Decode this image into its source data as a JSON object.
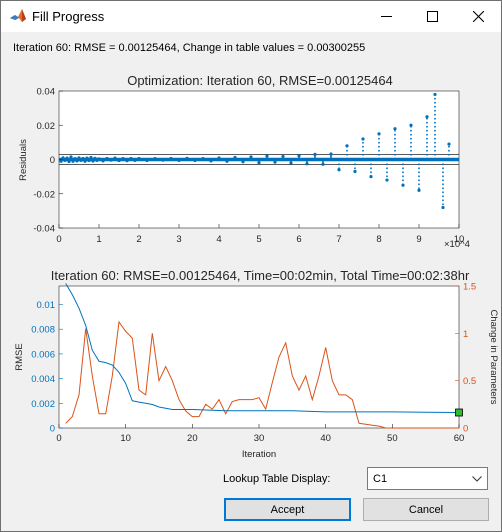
{
  "window": {
    "title": "Fill Progress",
    "icons": [
      "matlab-logo-icon",
      "minimize-icon",
      "maximize-icon",
      "close-icon"
    ]
  },
  "status": "Iteration 60: RMSE = 0.00125464, Change in table values = 0.00300255",
  "controls": {
    "lookup_label": "Lookup Table Display:",
    "lookup_value": "C1",
    "accept_label": "Accept",
    "cancel_label": "Cancel"
  },
  "colors": {
    "blue": "#0072bd",
    "orange": "#d95319",
    "marker": "#2ebd2e",
    "accept_border": "#0078d7"
  },
  "chart_data": [
    {
      "type": "scatter",
      "title": "Optimization: Iteration 60, RMSE=0.00125464",
      "ylabel": "Residuals",
      "xlabel": "",
      "x_exponent_label": "×10^4",
      "xlim": [
        0,
        10
      ],
      "ylim": [
        -0.04,
        0.04
      ],
      "x_ticks": [
        "0",
        "1",
        "2",
        "3",
        "4",
        "5",
        "6",
        "7",
        "8",
        "9",
        "10"
      ],
      "y_ticks": [
        "-0.04",
        "-0.02",
        "0",
        "0.02",
        "0.04"
      ],
      "reference_lines": [
        0.003,
        -0.003
      ],
      "series": [
        {
          "x": [
            0.05,
            0.1,
            0.15,
            0.2,
            0.25,
            0.3,
            0.35,
            0.4,
            0.45,
            0.5,
            0.55,
            0.6,
            0.65,
            0.7,
            0.75,
            0.8,
            0.85,
            0.9,
            0.95,
            1.0,
            1.1,
            1.2,
            1.3,
            1.4,
            1.5,
            1.6,
            1.7,
            1.8,
            1.9,
            2.0,
            2.2,
            2.4,
            2.6,
            2.8,
            3.0,
            3.2,
            3.4,
            3.6,
            3.8,
            4.0,
            4.2,
            4.4,
            4.6,
            4.8,
            5.0,
            5.2,
            5.4,
            5.6,
            5.8,
            6.0,
            6.2,
            6.4,
            6.6,
            6.8,
            7.0,
            7.2,
            7.4,
            7.6,
            7.8,
            8.0,
            8.2,
            8.4,
            8.6,
            8.8,
            9.0,
            9.2,
            9.4,
            9.6,
            9.75
          ],
          "y": [
            -0.001,
            0.001,
            -0.0005,
            0.0008,
            -0.0012,
            0.0015,
            -0.001,
            0.0005,
            -0.0008,
            0.001,
            -0.0005,
            0.0006,
            -0.001,
            0.0008,
            -0.0006,
            0.0012,
            -0.0009,
            0.0007,
            -0.0005,
            0.0004,
            -0.0008,
            0.0006,
            -0.0004,
            0.0008,
            -0.0006,
            0.0005,
            -0.0007,
            0.0006,
            -0.0005,
            0.0006,
            -0.0006,
            0.0005,
            -0.0004,
            0.0006,
            -0.0005,
            0.0007,
            -0.0006,
            0.0005,
            -0.0008,
            0.0009,
            -0.001,
            0.0012,
            -0.0013,
            0.0015,
            -0.0018,
            0.002,
            -0.0015,
            0.0018,
            -0.002,
            0.0022,
            -0.0025,
            0.003,
            -0.0028,
            0.0032,
            -0.006,
            0.008,
            -0.007,
            0.012,
            -0.01,
            0.015,
            -0.012,
            0.018,
            -0.015,
            0.02,
            -0.018,
            0.025,
            0.038,
            -0.028,
            0.009
          ]
        }
      ]
    },
    {
      "type": "line",
      "title": "Iteration 60: RMSE=0.00125464, Time=00:02min, Total Time=00:02:38hr",
      "xlabel": "Iteration",
      "ylabel": "RMSE",
      "y2label": "Change in Parameters",
      "xlim": [
        0,
        60
      ],
      "ylim": [
        0,
        0.0115
      ],
      "y2lim": [
        0,
        1.5
      ],
      "x_ticks": [
        "0",
        "10",
        "20",
        "30",
        "40",
        "50",
        "60"
      ],
      "y_ticks": [
        "0",
        "0.002",
        "0.004",
        "0.006",
        "0.008",
        "0.01"
      ],
      "y2_ticks": [
        "0",
        "0.5",
        "1",
        "1.5"
      ],
      "series": [
        {
          "name": "RMSE",
          "axis": "left",
          "x": [
            1,
            2,
            3,
            4,
            5,
            6,
            7,
            8,
            9,
            10,
            11,
            12,
            13,
            14,
            15,
            16,
            17,
            18,
            19,
            20,
            25,
            30,
            35,
            40,
            45,
            50,
            55,
            60
          ],
          "y": [
            0.0117,
            0.0108,
            0.0097,
            0.0083,
            0.0063,
            0.0054,
            0.0053,
            0.0051,
            0.0045,
            0.0036,
            0.0022,
            0.0021,
            0.002,
            0.0019,
            0.0017,
            0.0016,
            0.0015,
            0.0015,
            0.0015,
            0.0015,
            0.0014,
            0.0014,
            0.0014,
            0.0013,
            0.0013,
            0.0013,
            0.00127,
            0.00125464
          ]
        },
        {
          "name": "Change in Parameters",
          "axis": "right",
          "x": [
            1,
            2,
            3,
            4,
            5,
            6,
            7,
            8,
            9,
            10,
            11,
            12,
            13,
            14,
            15,
            16,
            17,
            18,
            19,
            20,
            21,
            22,
            23,
            24,
            25,
            26,
            27,
            28,
            29,
            30,
            31,
            32,
            33,
            34,
            35,
            36,
            37,
            38,
            39,
            40,
            41,
            42,
            43,
            44,
            45,
            46,
            47,
            48,
            49,
            50,
            51,
            52,
            53,
            54,
            55,
            56,
            57,
            58,
            59,
            60
          ],
          "y": [
            0.05,
            0.12,
            0.35,
            1.05,
            0.55,
            0.15,
            0.15,
            0.55,
            1.12,
            1.02,
            0.95,
            0.4,
            0.35,
            1.0,
            0.5,
            0.65,
            0.5,
            0.3,
            0.18,
            0.12,
            0.12,
            0.25,
            0.2,
            0.3,
            0.15,
            0.28,
            0.3,
            0.3,
            0.3,
            0.32,
            0.2,
            0.48,
            0.75,
            0.9,
            0.55,
            0.4,
            0.55,
            0.3,
            0.55,
            0.85,
            0.5,
            0.35,
            0.35,
            0.3,
            0.05,
            0.04,
            0.03,
            0.02,
            0.0,
            0.0,
            0.0,
            0.0,
            0.0,
            0.0,
            0.0,
            0.0,
            0.0,
            0.0,
            0.0,
            0.0
          ]
        }
      ],
      "final_marker": {
        "x": 60,
        "y": 0.00125464
      }
    }
  ]
}
